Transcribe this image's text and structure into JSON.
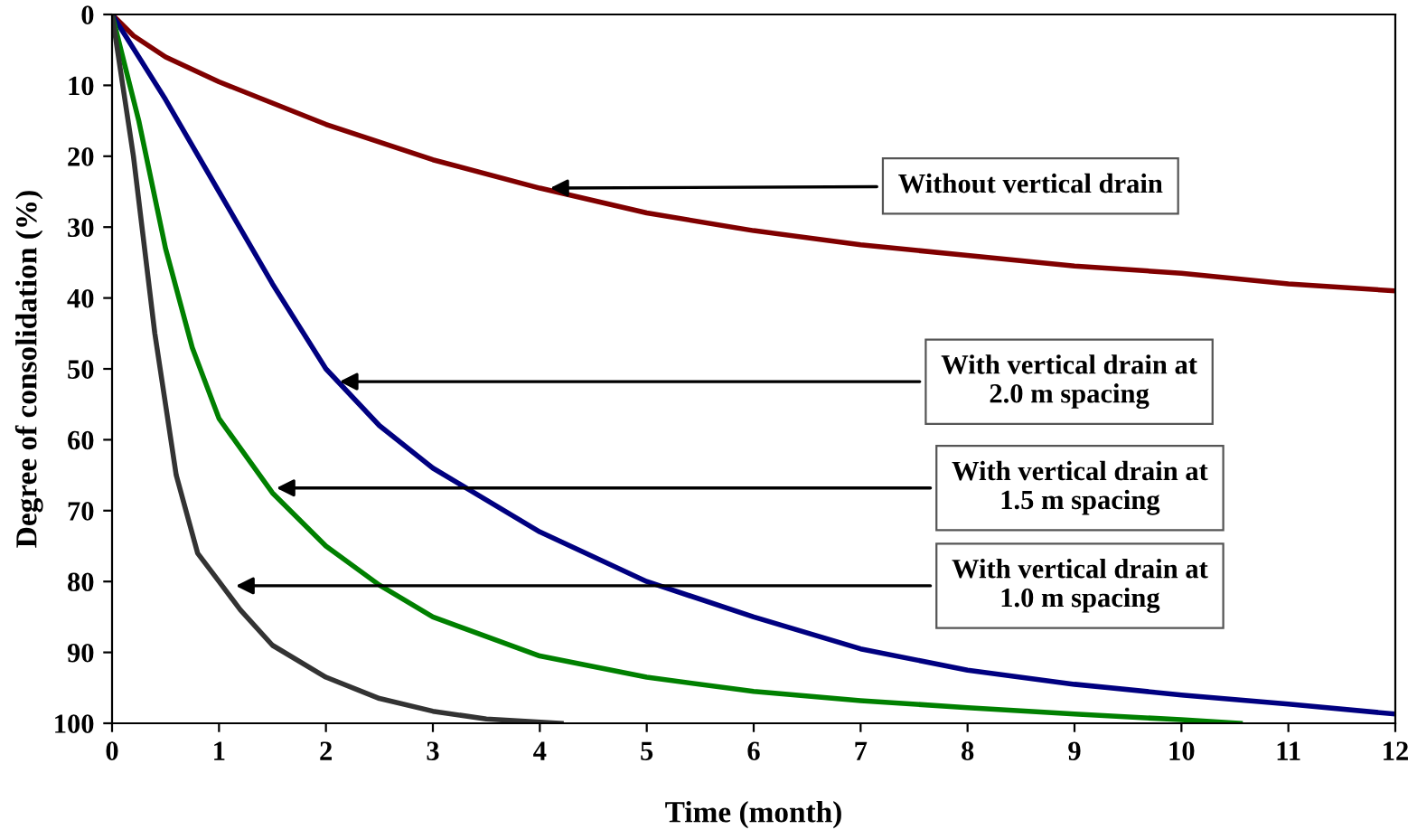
{
  "chart_data": {
    "type": "line",
    "xlabel": "Time (month)",
    "ylabel": "Degree of consolidation (%)",
    "xlim": [
      0,
      12
    ],
    "xticks": [
      0,
      1,
      2,
      3,
      4,
      5,
      6,
      7,
      8,
      9,
      10,
      11,
      12
    ],
    "ylim": [
      100,
      0
    ],
    "yticks": [
      0,
      10,
      20,
      30,
      40,
      50,
      60,
      70,
      80,
      90,
      100
    ],
    "grid": false,
    "marker": "none",
    "line_style": "solid",
    "series": [
      {
        "color": "#800000",
        "x": [
          0,
          0.2,
          0.5,
          1,
          1.5,
          2,
          3,
          4,
          5,
          6,
          7,
          8,
          9,
          10,
          11,
          12
        ],
        "values": [
          0,
          3,
          6,
          9.5,
          12.5,
          15.5,
          20.5,
          24.5,
          28,
          30.5,
          32.5,
          34,
          35.5,
          36.5,
          38,
          39
        ]
      },
      {
        "color": "#000080",
        "x": [
          0,
          0.5,
          1,
          1.5,
          2,
          2.5,
          3,
          4,
          5,
          6,
          7,
          8,
          9,
          10,
          11,
          12
        ],
        "values": [
          0,
          12,
          25,
          38,
          50,
          58,
          64,
          73,
          80,
          85,
          89.5,
          92.5,
          94.5,
          96,
          97.3,
          98.7
        ]
      },
      {
        "color": "#008000",
        "x": [
          0,
          0.25,
          0.5,
          0.75,
          1,
          1.5,
          2,
          2.5,
          3,
          4,
          5,
          6,
          7,
          8,
          9,
          10,
          10.55
        ],
        "values": [
          0,
          15,
          33,
          47,
          57,
          67.5,
          75,
          80.5,
          85,
          90.5,
          93.5,
          95.5,
          96.8,
          97.8,
          98.7,
          99.5,
          100
        ]
      },
      {
        "color": "#333333",
        "x": [
          0,
          0.2,
          0.4,
          0.6,
          0.8,
          1,
          1.2,
          1.5,
          2,
          2.5,
          3,
          3.5,
          4.2
        ],
        "values": [
          0,
          20,
          45,
          65,
          76,
          80,
          84,
          89,
          93.5,
          96.5,
          98.3,
          99.4,
          100
        ]
      }
    ],
    "annotations": [
      {
        "text": "Without vertical drain",
        "x": 4.05,
        "y": 24.5
      },
      {
        "text": "With vertical drain at\n2.0 m spacing",
        "x": 2.08,
        "y": 51.8
      },
      {
        "text": "With vertical drain at\n1.5 m spacing",
        "x": 1.49,
        "y": 66.8
      },
      {
        "text": "With vertical drain at\n1.0 m spacing",
        "x": 1.11,
        "y": 80.6
      }
    ]
  }
}
